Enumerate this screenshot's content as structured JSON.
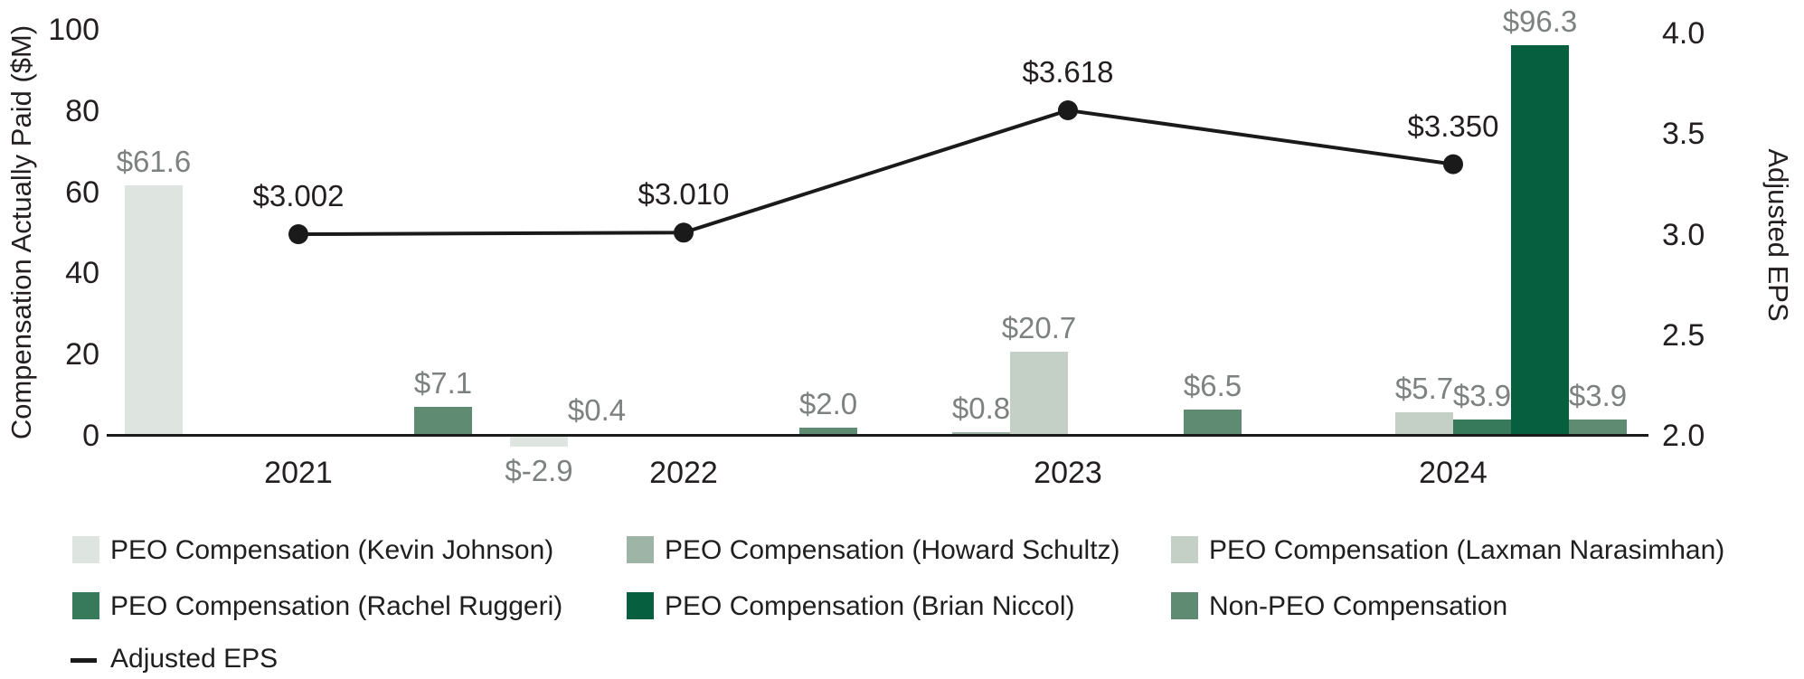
{
  "chart_data": {
    "type": "bar+line",
    "categories": [
      "2021",
      "2022",
      "2023",
      "2024"
    ],
    "bar_series": [
      {
        "name": "PEO Compensation (Kevin Johnson)",
        "color": "#dee4df",
        "values": [
          61.6,
          -2.9,
          null,
          null
        ],
        "labels": [
          "$61.6",
          "$-2.9",
          null,
          null
        ]
      },
      {
        "name": "PEO Compensation (Howard Schultz)",
        "color": "#9db4a7",
        "values": [
          null,
          0.4,
          0.8,
          null
        ],
        "labels": [
          null,
          "$0.4",
          "$0.8",
          null
        ]
      },
      {
        "name": "PEO Compensation (Laxman Narasimhan)",
        "color": "#c4d0c5",
        "values": [
          null,
          null,
          20.7,
          5.7
        ],
        "labels": [
          null,
          null,
          "$20.7",
          "$5.7"
        ]
      },
      {
        "name": "PEO Compensation (Rachel Ruggeri)",
        "color": "#37795b",
        "values": [
          null,
          null,
          null,
          3.9
        ],
        "labels": [
          null,
          null,
          null,
          "$3.9"
        ]
      },
      {
        "name": "PEO Compensation (Brian Niccol)",
        "color": "#065f3e",
        "values": [
          null,
          null,
          null,
          96.3
        ],
        "labels": [
          null,
          null,
          null,
          "$96.3"
        ]
      },
      {
        "name": "Non-PEO Compensation",
        "color": "#5f8b73",
        "values": [
          7.1,
          2.0,
          6.5,
          3.9
        ],
        "labels": [
          "$7.1",
          "$2.0",
          "$6.5",
          "$3.9"
        ]
      }
    ],
    "line_series": {
      "name": "Adjusted EPS",
      "color": "#1a1a1a",
      "values": [
        3.002,
        3.01,
        3.618,
        3.35
      ],
      "labels": [
        "$3.002",
        "$3.010",
        "$3.618",
        "$3.350"
      ]
    },
    "left_axis": {
      "title": "Compensation Actually Paid ($M)",
      "ticks": [
        0,
        20,
        40,
        60,
        80,
        100
      ],
      "tick_labels": [
        "0",
        "20",
        "40",
        "60",
        "80",
        "100"
      ],
      "range": [
        0,
        100
      ]
    },
    "right_axis": {
      "title": "Adjusted EPS",
      "ticks": [
        2.0,
        2.5,
        3.0,
        3.5,
        4.0
      ],
      "tick_labels": [
        "2.0",
        "2.5",
        "3.0",
        "3.5",
        "4.0"
      ],
      "range": [
        2.0,
        4.0
      ]
    },
    "grid": false,
    "legend_position": "bottom"
  },
  "colors": {
    "background": "#ffffff",
    "axis": "#1a1a1a",
    "tick_text": "#231f20",
    "value_label_text": "#7d817f",
    "legend_text": "#1f1f1f"
  }
}
